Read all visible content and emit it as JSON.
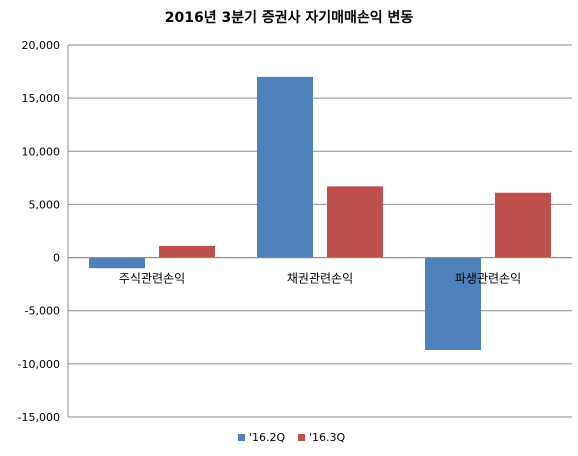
{
  "chart_data": {
    "type": "bar",
    "title": "2016년 3분기 증권사 자기매매손익 변동",
    "xlabel": "",
    "ylabel": "",
    "categories": [
      "주식관련손익",
      "채권관련손익",
      "파생관련손익"
    ],
    "series": [
      {
        "name": "'16.2Q",
        "color": "#4f81bd",
        "values": [
          -1000,
          17000,
          -8700
        ]
      },
      {
        "name": "'16.3Q",
        "color": "#c0504d",
        "values": [
          1100,
          6700,
          6100
        ]
      }
    ],
    "ylim": [
      -15000,
      20000
    ],
    "yticks": [
      20000,
      15000,
      10000,
      5000,
      0,
      -5000,
      -10000,
      -15000
    ],
    "ytick_labels": [
      "20,000",
      "15,000",
      "10,000",
      "5,000",
      "0",
      "-5,000",
      "-10,000",
      "-15,000"
    ],
    "grid": true,
    "legend_position": "bottom"
  }
}
